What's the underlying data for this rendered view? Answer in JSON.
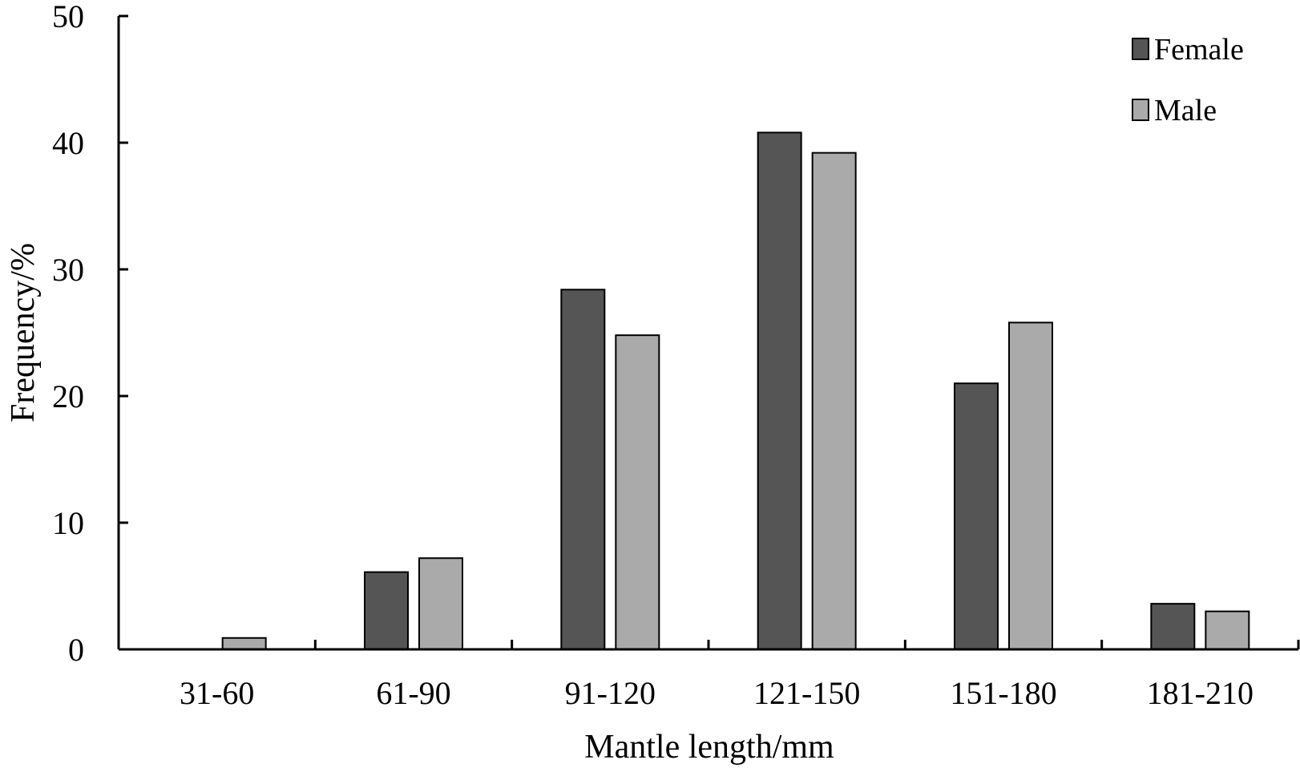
{
  "chart_data": {
    "type": "bar",
    "title": "",
    "xlabel": "Mantle length/mm",
    "ylabel": "Frequency/%",
    "categories": [
      "31-60",
      "61-90",
      "91-120",
      "121-150",
      "151-180",
      "181-210"
    ],
    "yticks": [
      "0",
      "10",
      "20",
      "30",
      "40",
      "50"
    ],
    "ylim": [
      0,
      50
    ],
    "grid": false,
    "legend_position": "top-right",
    "series": [
      {
        "name": "Female",
        "color": "#555555",
        "values": [
          0,
          6.1,
          28.4,
          40.8,
          21.0,
          3.6
        ]
      },
      {
        "name": "Male",
        "color": "#aaaaaa",
        "values": [
          0.9,
          7.2,
          24.8,
          39.2,
          25.8,
          3.0
        ]
      }
    ]
  }
}
